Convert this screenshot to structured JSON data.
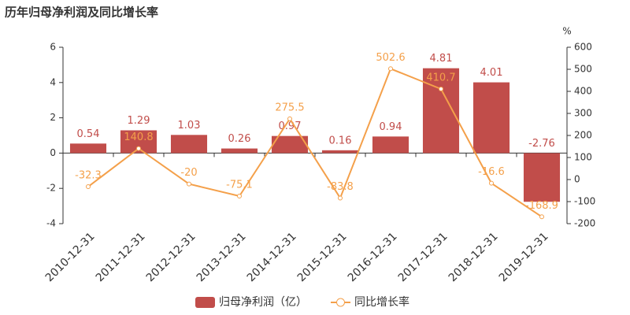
{
  "chart_data": {
    "type": "bar",
    "title": "历年归母净利润及同比增长率",
    "y2label": "%",
    "categories": [
      "2010-12-31",
      "2011-12-31",
      "2012-12-31",
      "2013-12-31",
      "2014-12-31",
      "2015-12-31",
      "2016-12-31",
      "2017-12-31",
      "2018-12-31",
      "2019-12-31"
    ],
    "series": [
      {
        "name": "归母净利润（亿）",
        "color": "#c14d4a",
        "values": [
          0.54,
          1.29,
          1.03,
          0.26,
          0.97,
          0.16,
          0.94,
          4.81,
          4.01,
          -2.76
        ]
      },
      {
        "name": "同比增长率",
        "type": "line",
        "axis": "y2",
        "color": "#f4a04a",
        "values": [
          -32.3,
          140.8,
          -20,
          -75.1,
          275.5,
          -83.8,
          502.6,
          410.7,
          -16.6,
          -168.9
        ]
      }
    ],
    "ylim": [
      -4,
      6
    ],
    "yticks": [
      -4,
      -2,
      0,
      2,
      4,
      6
    ],
    "y2lim": [
      -200,
      600
    ],
    "y2ticks": [
      -200,
      -100,
      0,
      100,
      200,
      300,
      400,
      500,
      600
    ],
    "grid": false
  }
}
